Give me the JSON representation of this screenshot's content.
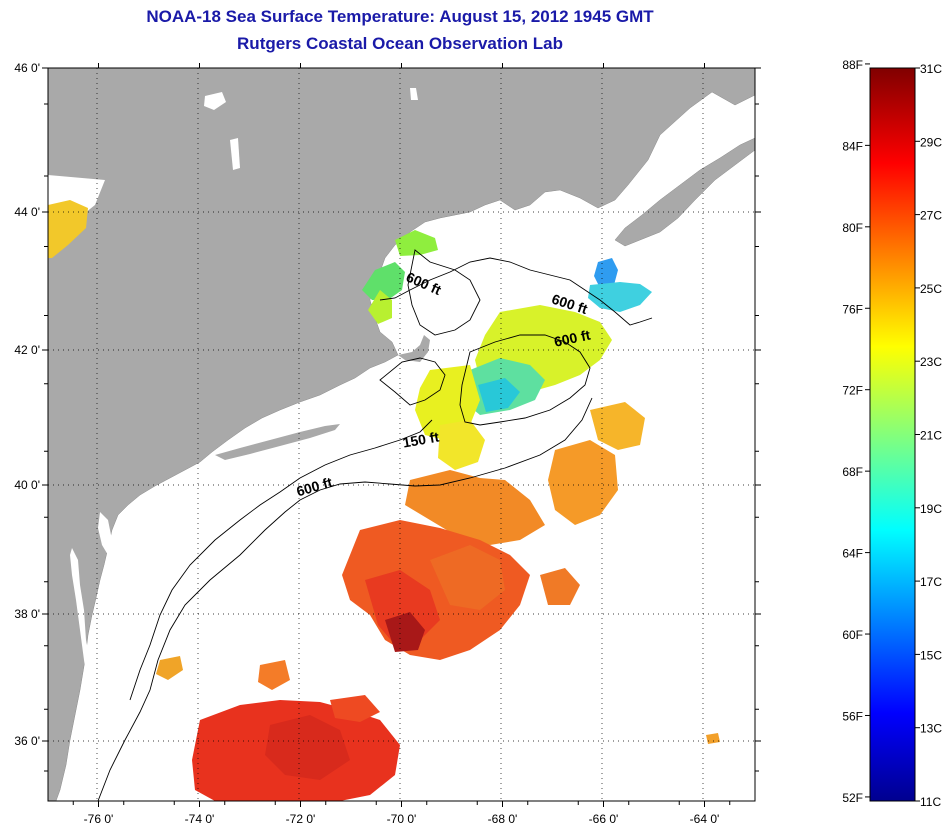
{
  "title": "NOAA-18 Sea Surface Temperature:  August 15, 2012 1945 GMT",
  "subtitle": "Rutgers Coastal Ocean Observation Lab",
  "colors": {
    "land": "#a9a9a9",
    "ocean_nodata": "#ffffff",
    "title_text": "#1a1aa8"
  },
  "map": {
    "lon_range": [
      -77,
      -63
    ],
    "lat_range": [
      35,
      46
    ],
    "lon_ticks": [
      {
        "value": -76,
        "label": "-76 0'"
      },
      {
        "value": -74,
        "label": "-74 0'"
      },
      {
        "value": -72,
        "label": "-72 0'"
      },
      {
        "value": -70,
        "label": "-70 0'"
      },
      {
        "value": -68,
        "label": "-68 0'"
      },
      {
        "value": -66,
        "label": "-66 0'"
      },
      {
        "value": -64,
        "label": "-64 0'"
      }
    ],
    "lat_ticks": [
      {
        "value": 46,
        "label": "46 0'"
      },
      {
        "value": 44,
        "label": "44 0'"
      },
      {
        "value": 42,
        "label": "42 0'"
      },
      {
        "value": 40,
        "label": "40 0'"
      },
      {
        "value": 38,
        "label": "38 0'"
      },
      {
        "value": 36,
        "label": "36 0'"
      }
    ],
    "contour_labels": [
      {
        "text": "600 ft",
        "lon": -71.7,
        "lat": 39.9
      },
      {
        "text": "150 ft",
        "lon": -69.6,
        "lat": 40.6
      },
      {
        "text": "600 ft",
        "lon": -69.6,
        "lat": 42.9
      },
      {
        "text": "600 ft",
        "lon": -66.7,
        "lat": 42.6
      },
      {
        "text": "600 ft",
        "lon": -66.6,
        "lat": 42.1
      }
    ]
  },
  "colorbar": {
    "fahrenheit_labels": [
      "88F",
      "84F",
      "80F",
      "76F",
      "72F",
      "68F",
      "64F",
      "60F",
      "56F",
      "52F"
    ],
    "celsius_labels": [
      "31C",
      "29C",
      "27C",
      "25C",
      "23C",
      "21C",
      "19C",
      "17C",
      "15C",
      "13C",
      "11C"
    ],
    "range_c": [
      11,
      31
    ]
  }
}
